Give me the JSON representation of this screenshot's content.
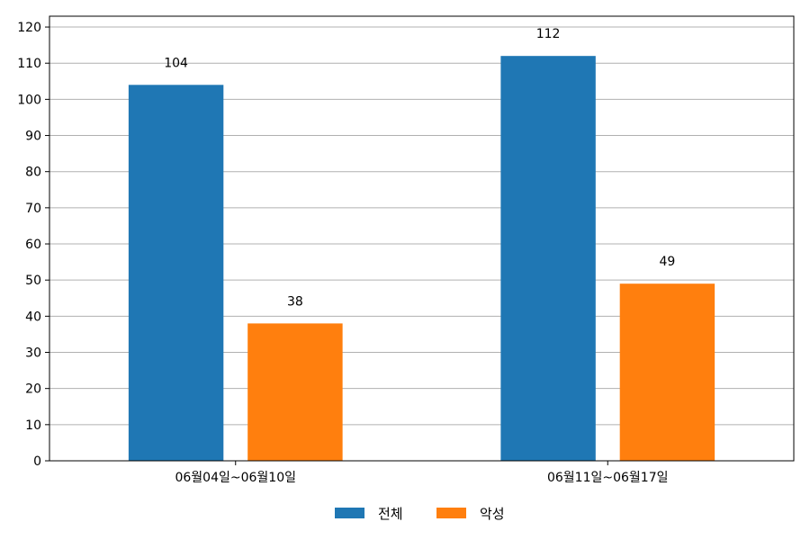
{
  "chart_data": {
    "type": "bar",
    "categories": [
      "06월04일~06월10일",
      "06월11일~06월17일"
    ],
    "series": [
      {
        "name": "전체",
        "values": [
          104,
          112
        ],
        "color": "#1f77b4"
      },
      {
        "name": "악성",
        "values": [
          38,
          49
        ],
        "color": "#ff7f0e"
      }
    ],
    "ylim": [
      0,
      123
    ],
    "yticks": [
      0,
      10,
      20,
      30,
      40,
      50,
      60,
      70,
      80,
      90,
      100,
      110,
      120
    ],
    "grid": true,
    "grid_color": "#b0b0b0",
    "legend_placement": "bottom-center"
  }
}
